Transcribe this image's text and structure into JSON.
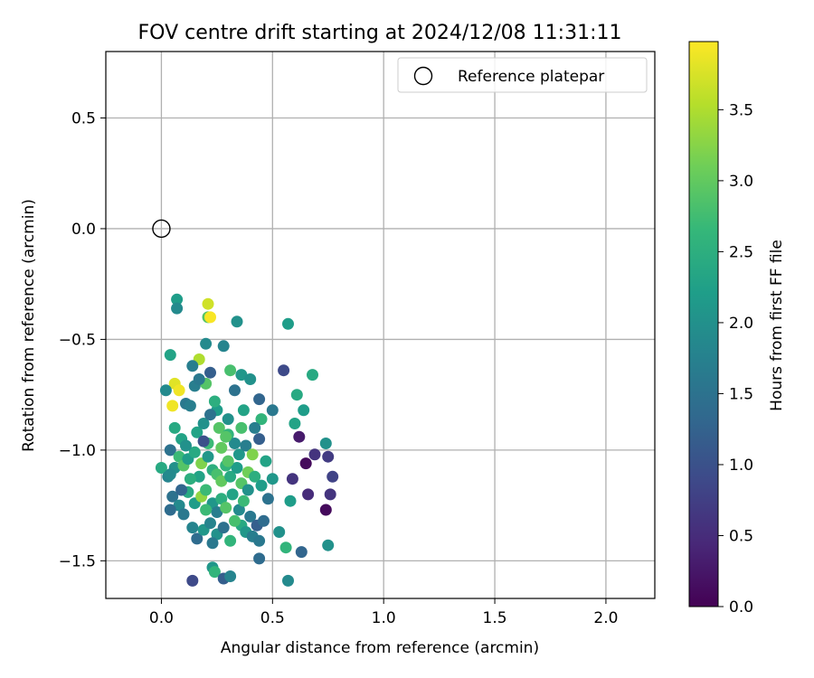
{
  "chart_data": {
    "type": "scatter",
    "title": "FOV centre drift starting at 2024/12/08 11:31:11",
    "xlabel": "Angular distance from reference (arcmin)",
    "ylabel": "Rotation from reference (arcmin)",
    "xlim": [
      -0.25,
      2.22
    ],
    "ylim": [
      -1.67,
      0.8
    ],
    "xticks": [
      "0.0",
      "0.5",
      "1.0",
      "1.5",
      "2.0"
    ],
    "xtick_values": [
      0.0,
      0.5,
      1.0,
      1.5,
      2.0
    ],
    "yticks": [
      "0.5",
      "0.0",
      "−0.5",
      "−1.0",
      "−1.5"
    ],
    "ytick_values": [
      0.5,
      0.0,
      -0.5,
      -1.0,
      -1.5
    ],
    "grid": true,
    "legend": {
      "placement": "top-right",
      "entries": [
        "Reference platepar"
      ]
    },
    "reference_point": {
      "x": 0.0,
      "y": 0.0,
      "marker": "open-circle"
    },
    "colorbar": {
      "label": "Hours from first FF file",
      "colormap": "viridis",
      "range": [
        0.0,
        3.98
      ],
      "ticks": [
        "0.0",
        "0.5",
        "1.0",
        "1.5",
        "2.0",
        "2.5",
        "3.0",
        "3.5"
      ],
      "tick_values": [
        0.0,
        0.5,
        1.0,
        1.5,
        2.0,
        2.5,
        3.0,
        3.5
      ]
    },
    "colormap_stops": [
      "#440154",
      "#482878",
      "#3e4989",
      "#31688e",
      "#26828e",
      "#1f9e89",
      "#35b779",
      "#6ece58",
      "#b5de2b",
      "#fde725"
    ],
    "points": [
      [
        0.07,
        -0.32,
        2.2
      ],
      [
        0.07,
        -0.36,
        1.9
      ],
      [
        0.21,
        -0.4,
        2.9
      ],
      [
        0.22,
        -0.4,
        3.95
      ],
      [
        0.21,
        -0.34,
        3.7
      ],
      [
        0.34,
        -0.42,
        2.0
      ],
      [
        0.57,
        -0.43,
        2.2
      ],
      [
        0.04,
        -0.57,
        2.3
      ],
      [
        0.17,
        -0.59,
        3.5
      ],
      [
        0.2,
        -0.52,
        1.9
      ],
      [
        0.28,
        -0.53,
        1.8
      ],
      [
        0.14,
        -0.62,
        1.7
      ],
      [
        0.31,
        -0.64,
        2.8
      ],
      [
        0.22,
        -0.65,
        1.2
      ],
      [
        0.36,
        -0.66,
        2.1
      ],
      [
        0.4,
        -0.68,
        2.0
      ],
      [
        0.55,
        -0.64,
        0.9
      ],
      [
        0.68,
        -0.66,
        2.4
      ],
      [
        0.06,
        -0.7,
        3.8
      ],
      [
        0.08,
        -0.73,
        3.9
      ],
      [
        0.05,
        -0.8,
        3.9
      ],
      [
        0.02,
        -0.73,
        1.9
      ],
      [
        0.15,
        -0.71,
        1.7
      ],
      [
        0.2,
        -0.7,
        2.9
      ],
      [
        0.33,
        -0.73,
        1.5
      ],
      [
        0.44,
        -0.77,
        1.3
      ],
      [
        0.61,
        -0.75,
        2.4
      ],
      [
        0.64,
        -0.82,
        2.2
      ],
      [
        0.5,
        -0.82,
        1.6
      ],
      [
        0.6,
        -0.88,
        2.3
      ],
      [
        0.62,
        -0.94,
        0.3
      ],
      [
        0.69,
        -1.02,
        0.6
      ],
      [
        0.75,
        -1.03,
        0.7
      ],
      [
        0.65,
        -1.06,
        0.1
      ],
      [
        0.77,
        -1.12,
        0.8
      ],
      [
        0.59,
        -1.13,
        0.6
      ],
      [
        0.66,
        -1.2,
        0.5
      ],
      [
        0.76,
        -1.2,
        0.6
      ],
      [
        0.74,
        -1.27,
        0.1
      ],
      [
        0.74,
        -0.97,
        2.0
      ],
      [
        0.45,
        -0.86,
        2.6
      ],
      [
        0.42,
        -0.9,
        1.7
      ],
      [
        0.3,
        -0.86,
        2.0
      ],
      [
        0.25,
        -0.82,
        2.2
      ],
      [
        0.06,
        -0.9,
        2.4
      ],
      [
        0.09,
        -0.95,
        2.3
      ],
      [
        0.11,
        -0.79,
        1.6
      ],
      [
        0.13,
        -0.8,
        1.7
      ],
      [
        0.16,
        -0.92,
        2.3
      ],
      [
        0.19,
        -0.88,
        2.0
      ],
      [
        0.22,
        -0.84,
        1.5
      ],
      [
        0.26,
        -0.9,
        2.9
      ],
      [
        0.3,
        -0.93,
        2.6
      ],
      [
        0.33,
        -0.97,
        1.9
      ],
      [
        0.35,
        -1.02,
        2.1
      ],
      [
        0.38,
        -0.98,
        1.7
      ],
      [
        0.44,
        -0.95,
        1.2
      ],
      [
        0.47,
        -1.05,
        2.3
      ],
      [
        0.5,
        -1.13,
        2.1
      ],
      [
        0.04,
        -1.0,
        1.5
      ],
      [
        0.06,
        -1.08,
        2.0
      ],
      [
        0.08,
        -1.03,
        2.7
      ],
      [
        0.1,
        -1.07,
        2.9
      ],
      [
        0.12,
        -1.04,
        2.2
      ],
      [
        0.15,
        -1.01,
        2.4
      ],
      [
        0.18,
        -1.06,
        3.2
      ],
      [
        0.21,
        -1.03,
        2.1
      ],
      [
        0.23,
        -1.09,
        2.5
      ],
      [
        0.25,
        -1.11,
        2.8
      ],
      [
        0.27,
        -1.14,
        3.0
      ],
      [
        0.29,
        -1.07,
        2.6
      ],
      [
        0.31,
        -1.12,
        2.4
      ],
      [
        0.34,
        -1.08,
        2.2
      ],
      [
        0.36,
        -1.15,
        2.9
      ],
      [
        0.39,
        -1.1,
        3.1
      ],
      [
        0.42,
        -1.12,
        2.5
      ],
      [
        0.45,
        -1.16,
        2.2
      ],
      [
        0.48,
        -1.22,
        1.5
      ],
      [
        0.0,
        -1.08,
        2.4
      ],
      [
        0.03,
        -1.12,
        1.8
      ],
      [
        0.05,
        -1.21,
        1.5
      ],
      [
        0.08,
        -1.25,
        1.9
      ],
      [
        0.1,
        -1.29,
        1.6
      ],
      [
        0.12,
        -1.19,
        2.4
      ],
      [
        0.15,
        -1.24,
        2.2
      ],
      [
        0.18,
        -1.21,
        3.3
      ],
      [
        0.2,
        -1.18,
        2.7
      ],
      [
        0.23,
        -1.24,
        2.1
      ],
      [
        0.25,
        -1.28,
        1.7
      ],
      [
        0.27,
        -1.22,
        2.5
      ],
      [
        0.29,
        -1.26,
        2.9
      ],
      [
        0.32,
        -1.2,
        2.3
      ],
      [
        0.35,
        -1.27,
        1.9
      ],
      [
        0.37,
        -1.23,
        2.7
      ],
      [
        0.4,
        -1.3,
        1.6
      ],
      [
        0.43,
        -1.34,
        1.2
      ],
      [
        0.46,
        -1.32,
        1.4
      ],
      [
        0.04,
        -1.27,
        1.4
      ],
      [
        0.14,
        -1.35,
        1.8
      ],
      [
        0.16,
        -1.4,
        1.4
      ],
      [
        0.19,
        -1.36,
        2.1
      ],
      [
        0.22,
        -1.33,
        1.8
      ],
      [
        0.25,
        -1.38,
        2.0
      ],
      [
        0.28,
        -1.35,
        1.5
      ],
      [
        0.31,
        -1.41,
        2.6
      ],
      [
        0.36,
        -1.34,
        2.4
      ],
      [
        0.38,
        -1.37,
        2.1
      ],
      [
        0.41,
        -1.39,
        1.7
      ],
      [
        0.44,
        -1.41,
        1.6
      ],
      [
        0.53,
        -1.37,
        2.0
      ],
      [
        0.56,
        -1.44,
        2.6
      ],
      [
        0.63,
        -1.46,
        1.3
      ],
      [
        0.75,
        -1.43,
        2.0
      ],
      [
        0.58,
        -1.23,
        2.2
      ],
      [
        0.44,
        -1.49,
        1.4
      ],
      [
        0.23,
        -1.53,
        2.1
      ],
      [
        0.24,
        -1.55,
        2.6
      ],
      [
        0.14,
        -1.59,
        0.9
      ],
      [
        0.28,
        -1.58,
        1.2
      ],
      [
        0.31,
        -1.57,
        1.8
      ],
      [
        0.57,
        -1.59,
        1.9
      ],
      [
        0.04,
        -1.11,
        1.9
      ],
      [
        0.17,
        -1.12,
        2.3
      ],
      [
        0.39,
        -1.18,
        2.0
      ],
      [
        0.27,
        -0.99,
        3.0
      ],
      [
        0.21,
        -0.97,
        2.7
      ],
      [
        0.13,
        -1.13,
        2.5
      ],
      [
        0.3,
        -1.05,
        2.9
      ],
      [
        0.37,
        -0.82,
        2.3
      ],
      [
        0.24,
        -0.78,
        2.5
      ],
      [
        0.17,
        -0.68,
        1.6
      ],
      [
        0.41,
        -1.02,
        3.2
      ],
      [
        0.33,
        -1.32,
        2.8
      ],
      [
        0.11,
        -0.98,
        2.0
      ],
      [
        0.09,
        -1.18,
        1.3
      ],
      [
        0.36,
        -0.9,
        2.8
      ],
      [
        0.23,
        -1.42,
        1.6
      ],
      [
        0.19,
        -0.96,
        1.0
      ],
      [
        0.29,
        -0.94,
        2.9
      ],
      [
        0.2,
        -1.27,
        2.7
      ]
    ]
  }
}
